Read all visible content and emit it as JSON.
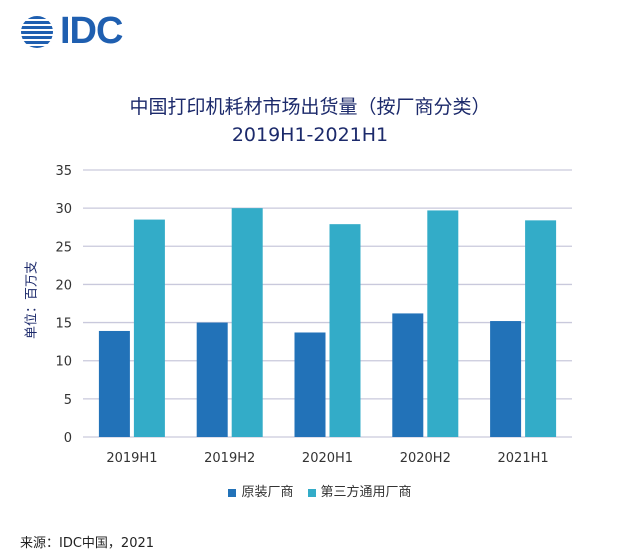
{
  "logo": {
    "text": "IDC"
  },
  "chart_data": {
    "type": "bar",
    "title": "中国打印机耗材市场出货量（按厂商分类）",
    "subtitle": "2019H1-2021H1",
    "ylabel": "单位：百万支",
    "xlabel": "",
    "ylim": [
      0,
      35
    ],
    "yticks": [
      0,
      5,
      10,
      15,
      20,
      25,
      30,
      35
    ],
    "grid": true,
    "legend_position": "bottom",
    "categories": [
      "2019H1",
      "2019H2",
      "2020H1",
      "2020H2",
      "2021H1"
    ],
    "series": [
      {
        "name": "原装厂商",
        "color": "#2272b8",
        "values": [
          13.9,
          15.0,
          13.7,
          16.2,
          15.2
        ]
      },
      {
        "name": "第三方通用厂商",
        "color": "#33acc8",
        "values": [
          28.5,
          30.0,
          27.9,
          29.7,
          28.4
        ]
      }
    ]
  },
  "source": "来源：IDC中国，2021"
}
